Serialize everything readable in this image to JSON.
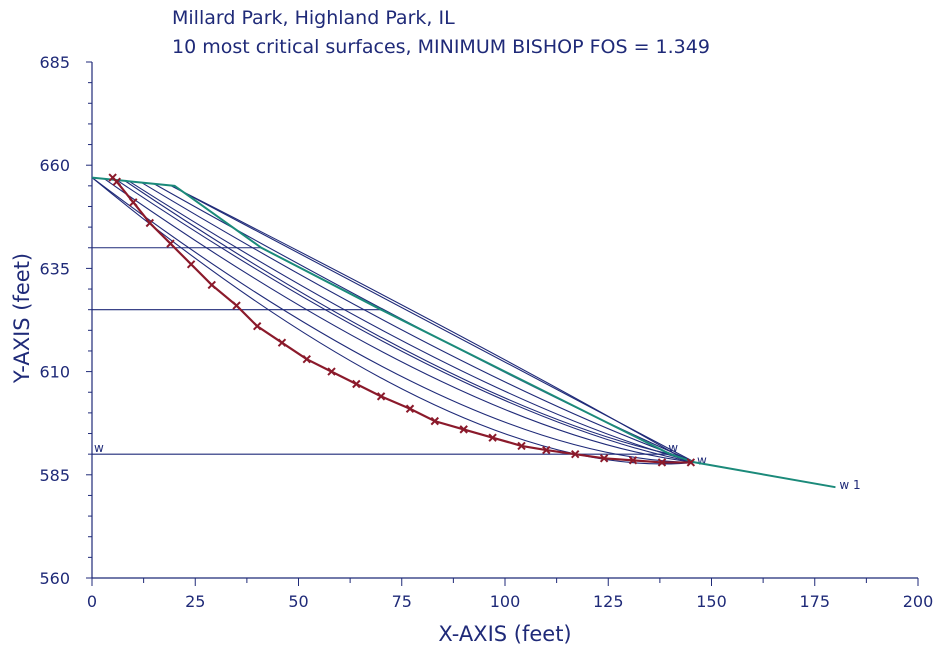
{
  "chart_data": {
    "type": "line",
    "title": "Millard Park, Highland Park, IL",
    "subtitle": "10 most critical surfaces, MINIMUM BISHOP FOS =  1.349",
    "xlabel": "X-AXIS (feet)",
    "ylabel": "Y-AXIS (feet)",
    "xlim": [
      0,
      200
    ],
    "ylim": [
      560,
      685
    ],
    "x_ticks": [
      "0",
      "25",
      "50",
      "75",
      "100",
      "125",
      "150",
      "175",
      "200"
    ],
    "y_ticks": [
      "560",
      "585",
      "610",
      "635",
      "660",
      "685"
    ],
    "x_tick_values": [
      0,
      25,
      50,
      75,
      100,
      125,
      150,
      175,
      200
    ],
    "y_tick_values": [
      560,
      585,
      610,
      635,
      660,
      685
    ],
    "grid": false,
    "colors": {
      "text": "#1f2a78",
      "surface": "#1f2a78",
      "ground": "#1b8a7a",
      "critical": "#8b1a2b"
    },
    "ground_surface": {
      "x": [
        0,
        20,
        41,
        70,
        140,
        146,
        180
      ],
      "y": [
        657,
        655,
        640,
        625,
        590,
        588,
        582
      ]
    },
    "water_table": {
      "x": [
        0,
        140,
        146,
        180
      ],
      "y": [
        590,
        590,
        588,
        582
      ],
      "labels": [
        "w",
        "w",
        "w",
        "w 1"
      ]
    },
    "layer_boundaries": [
      {
        "x": [
          0,
          41
        ],
        "y": [
          640,
          640
        ]
      },
      {
        "x": [
          0,
          70
        ],
        "y": [
          625,
          625
        ]
      }
    ],
    "critical_surface": {
      "name": "MINIMUM BISHOP FOS = 1.349",
      "x": [
        5,
        6,
        10,
        14,
        19,
        24,
        29,
        35,
        40,
        46,
        52,
        58,
        64,
        70,
        77,
        83,
        90,
        97,
        104,
        110,
        117,
        124,
        131,
        138,
        145
      ],
      "y": [
        657,
        656,
        651,
        646,
        641,
        636,
        631,
        626,
        621,
        617,
        613,
        610,
        607,
        604,
        601,
        598,
        596,
        594,
        592,
        591,
        590,
        589,
        588.5,
        588,
        588
      ]
    },
    "trial_surfaces": [
      {
        "entry_x": 0,
        "exit_x": 146,
        "sag": 20
      },
      {
        "entry_x": 0,
        "exit_x": 146,
        "sag": 17
      },
      {
        "entry_x": 3,
        "exit_x": 146,
        "sag": 14
      },
      {
        "entry_x": 6,
        "exit_x": 146,
        "sag": 12
      },
      {
        "entry_x": 9,
        "exit_x": 146,
        "sag": 10
      },
      {
        "entry_x": 12,
        "exit_x": 146,
        "sag": 8
      },
      {
        "entry_x": 15,
        "exit_x": 146,
        "sag": 6
      },
      {
        "entry_x": 19,
        "exit_x": 146,
        "sag": 4
      },
      {
        "entry_x": 19,
        "exit_x": 143,
        "sag": 3
      },
      {
        "entry_x": 8,
        "exit_x": 140,
        "sag": 11
      }
    ]
  }
}
